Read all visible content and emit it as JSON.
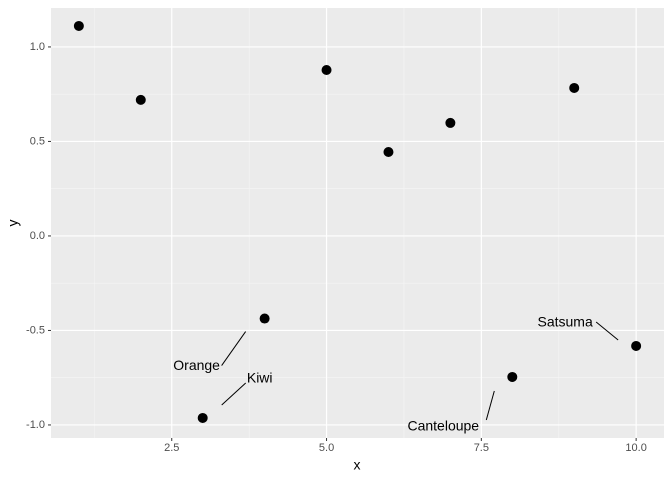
{
  "chart_data": {
    "type": "scatter",
    "x_label": "x",
    "y_label": "y",
    "x": [
      1,
      2,
      3,
      4,
      5,
      6,
      7,
      8,
      9,
      10
    ],
    "y": [
      1.111,
      0.72,
      -0.963,
      -0.437,
      0.878,
      0.444,
      0.598,
      -0.746,
      0.783,
      -0.582
    ],
    "labels": [
      null,
      null,
      "Kiwi",
      "Orange",
      null,
      null,
      null,
      "Canteloupe",
      null,
      "Satsuma"
    ],
    "color": "#000000",
    "xlim": [
      0.55,
      10.45
    ],
    "ylim": [
      -1.069,
      1.206
    ],
    "xticks": [
      2.5,
      {
        "value": 5,
        "label": "5.0"
      },
      7.5,
      {
        "value": 10,
        "label": "10.0"
      }
    ],
    "yticks": [
      {
        "value": -1,
        "label": "-1.0"
      },
      -0.5,
      {
        "value": 0,
        "label": "0.0"
      },
      0.5,
      {
        "value": 1,
        "label": "1.0"
      }
    ],
    "grid": true
  }
}
